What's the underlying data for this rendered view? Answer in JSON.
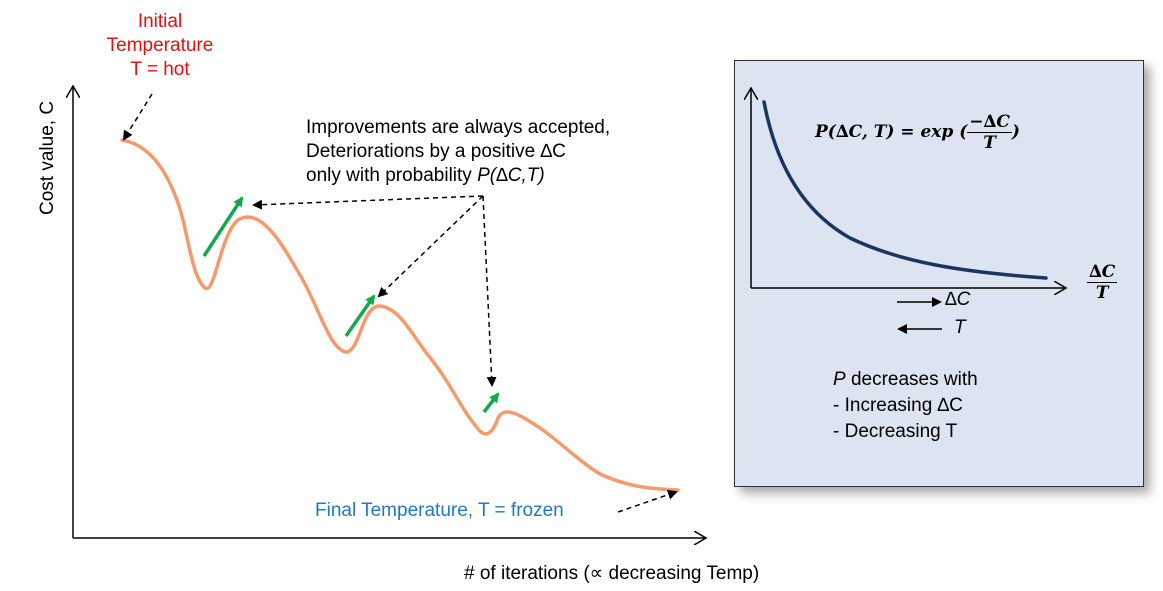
{
  "left_diagram": {
    "initial_temperature": [
      "Initial",
      "Temperature",
      "T = hot"
    ],
    "y_axis_label": "Cost value, C",
    "x_axis_label": "# of iterations (∝ decreasing Temp)",
    "improvement_note": {
      "line1": "Improvements are always accepted,",
      "line2": "Deteriorations by a positive ∆C",
      "line3_prefix": "only with probability ",
      "line3_italic": "P(∆C,T)"
    },
    "final_temperature": "Final Temperature, T = frozen"
  },
  "right_panel": {
    "formula_lhs": "P(∆C, T) = exp (",
    "formula_num": "−∆C",
    "formula_den": "T",
    "formula_close": ")",
    "axis_label_num": "∆C",
    "axis_label_den": "T",
    "arrow_label_dc": "∆C",
    "arrow_label_t": "T",
    "decreases": {
      "var": "P",
      "title_rest": " decreases with",
      "item1": "- Increasing ∆C",
      "item2": "- Decreasing T"
    }
  },
  "colors": {
    "cost_curve": "#f59a6a",
    "uphill_arrow": "#13a84a",
    "initial_temp_text": "#e8100f",
    "final_temp_text": "#1f7ac4",
    "panel_bg": "#dbe4f0",
    "decay_curve": "#1b355e"
  }
}
